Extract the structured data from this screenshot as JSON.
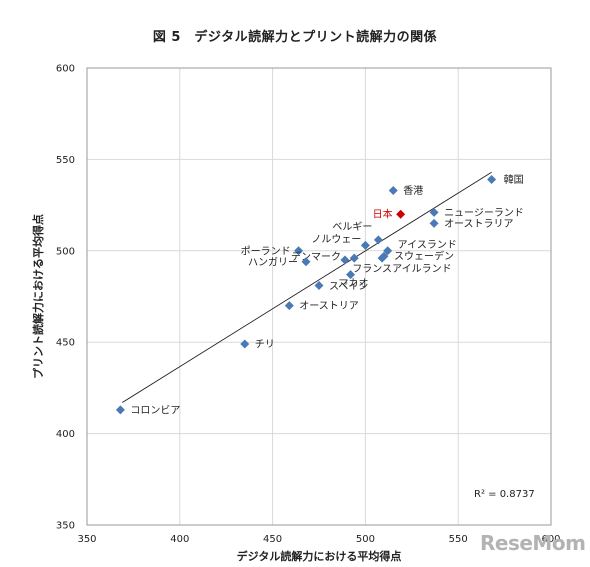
{
  "chart_data": {
    "type": "scatter",
    "title": "図 5　デジタル読解力とプリント読解力の関係",
    "xlabel": "デジタル読解力における平均得点",
    "ylabel": "プリント読解力における平均得点",
    "xlim": [
      350,
      600
    ],
    "ylim": [
      350,
      600
    ],
    "xticks": [
      350,
      400,
      450,
      500,
      550,
      600
    ],
    "yticks": [
      350,
      400,
      450,
      500,
      550,
      600
    ],
    "grid": true,
    "r2_label": "R² = 0.8737",
    "trendline": {
      "x": [
        369,
        568
      ],
      "y": [
        417,
        543
      ]
    },
    "highlight_color": "#cc0000",
    "marker_color": "#4a7ab5",
    "points": [
      {
        "name": "韓国",
        "x": 568,
        "y": 539,
        "highlight": false
      },
      {
        "name": "香港",
        "x": 515,
        "y": 533,
        "highlight": false
      },
      {
        "name": "日本",
        "x": 519,
        "y": 520,
        "highlight": true
      },
      {
        "name": "ニュージーランド",
        "x": 537,
        "y": 521,
        "highlight": false
      },
      {
        "name": "オーストラリア",
        "x": 537,
        "y": 515,
        "highlight": false
      },
      {
        "name": "ベルギー",
        "x": 507,
        "y": 506,
        "highlight": false
      },
      {
        "name": "ノルウェー",
        "x": 500,
        "y": 503,
        "highlight": false
      },
      {
        "name": "アイスランド",
        "x": 512,
        "y": 500,
        "highlight": false
      },
      {
        "name": "スウェーデン",
        "x": 510,
        "y": 497,
        "highlight": false
      },
      {
        "name": "フランス",
        "x": 494,
        "y": 496,
        "highlight": false
      },
      {
        "name": "アイルランド",
        "x": 509,
        "y": 496,
        "highlight": false
      },
      {
        "name": "ポーランド",
        "x": 464,
        "y": 500,
        "highlight": false
      },
      {
        "name": "デンマーク",
        "x": 489,
        "y": 495,
        "highlight": false
      },
      {
        "name": "ハンガリー",
        "x": 468,
        "y": 494,
        "highlight": false
      },
      {
        "name": "マカオ",
        "x": 492,
        "y": 487,
        "highlight": false
      },
      {
        "name": "スペイン",
        "x": 475,
        "y": 481,
        "highlight": false
      },
      {
        "name": "オーストリア",
        "x": 459,
        "y": 470,
        "highlight": false
      },
      {
        "name": "チリ",
        "x": 435,
        "y": 449,
        "highlight": false
      },
      {
        "name": "コロンビア",
        "x": 368,
        "y": 413,
        "highlight": false
      }
    ]
  },
  "watermark": "ReseMom"
}
